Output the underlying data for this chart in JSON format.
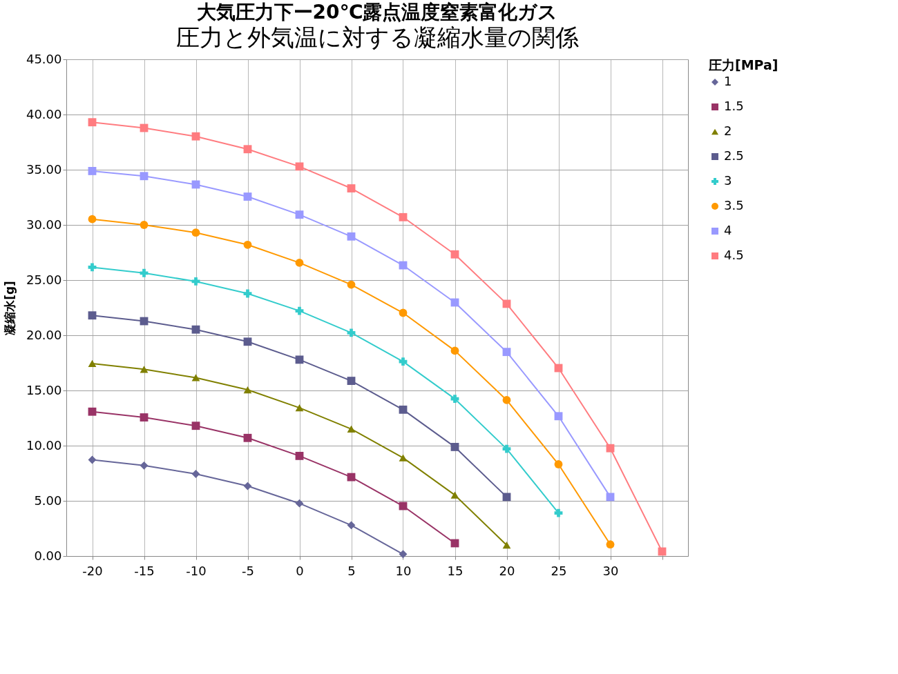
{
  "chart_data": {
    "type": "line",
    "title": "大気圧力下ー20℃露点温度窒素富化ガス",
    "subtitle": "圧力と外気温に対する凝縮水量の関係",
    "ylabel": "凝縮水[g]",
    "legend_title": "圧力[MPa]",
    "categories": [
      "-20",
      "-15",
      "-10",
      "-5",
      "0",
      "5",
      "10",
      "15",
      "20",
      "25",
      "30",
      null
    ],
    "ylim": [
      0,
      45
    ],
    "yticks": [
      {
        "value": 0,
        "label": "0.00"
      },
      {
        "value": 5,
        "label": "5.00"
      },
      {
        "value": 10,
        "label": "10.00"
      },
      {
        "value": 15,
        "label": "15.00"
      },
      {
        "value": 20,
        "label": "20.00"
      },
      {
        "value": 25,
        "label": "25.00"
      },
      {
        "value": 30,
        "label": "30.00"
      },
      {
        "value": 35,
        "label": "35.00"
      },
      {
        "value": 40,
        "label": "40.00"
      },
      {
        "value": 45,
        "label": "45.00"
      }
    ],
    "grid": true,
    "legend": "right",
    "line_style": "solid",
    "series": [
      {
        "name": "1",
        "color": "#666699",
        "marker": "diamond",
        "values": [
          8.72,
          8.2,
          7.44,
          6.34,
          4.77,
          2.79,
          0.17,
          null,
          null,
          null,
          null,
          null
        ]
      },
      {
        "name": "1.5",
        "color": "#993366",
        "marker": "square",
        "values": [
          13.08,
          12.56,
          11.8,
          10.7,
          9.07,
          7.15,
          4.53,
          1.16,
          null,
          null,
          null,
          null
        ]
      },
      {
        "name": "2",
        "color": "#808000",
        "marker": "triangle",
        "values": [
          17.44,
          16.92,
          16.16,
          15.06,
          13.43,
          11.51,
          8.9,
          5.52,
          0.99,
          null,
          null,
          null
        ]
      },
      {
        "name": "2.5",
        "color": "#5c5c8e",
        "marker": "square",
        "values": [
          21.8,
          21.28,
          20.52,
          19.42,
          17.79,
          15.87,
          13.26,
          9.88,
          5.35,
          null,
          null,
          null
        ]
      },
      {
        "name": "3",
        "color": "#33cccc",
        "marker": "cross",
        "values": [
          26.16,
          25.64,
          24.88,
          23.78,
          22.21,
          20.23,
          17.62,
          14.24,
          9.71,
          3.9,
          null,
          null
        ]
      },
      {
        "name": "3.5",
        "color": "#ff9900",
        "marker": "circle",
        "values": [
          30.52,
          30.0,
          29.3,
          28.2,
          26.57,
          24.59,
          22.03,
          18.6,
          14.13,
          8.31,
          1.05,
          null
        ]
      },
      {
        "name": "4",
        "color": "#9999ff",
        "marker": "square",
        "values": [
          34.88,
          34.42,
          33.66,
          32.56,
          30.93,
          28.95,
          26.34,
          22.97,
          18.49,
          12.67,
          5.35,
          null
        ]
      },
      {
        "name": "4.5",
        "color": "#ff7c80",
        "marker": "square",
        "values": [
          39.3,
          38.78,
          38.02,
          36.86,
          35.29,
          33.31,
          30.7,
          27.33,
          22.85,
          17.03,
          9.77,
          0.41
        ]
      }
    ]
  }
}
